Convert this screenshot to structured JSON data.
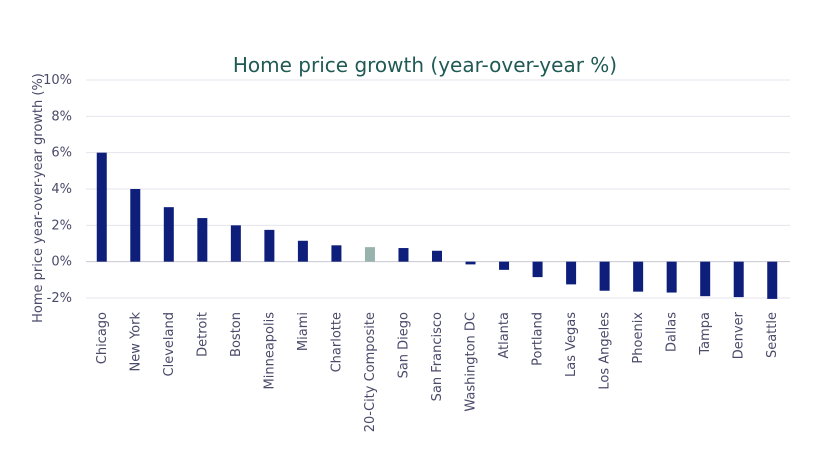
{
  "chart_data": {
    "type": "bar",
    "title": "Home price growth (year-over-year %)",
    "xlabel": "",
    "ylabel": "Home price year-over-year growth (%)",
    "ylim": [
      -2,
      10
    ],
    "yticks": [
      "-2%",
      "0%",
      "2%",
      "4%",
      "6%",
      "8%",
      "10%"
    ],
    "ytick_values": [
      -2,
      0,
      2,
      4,
      6,
      8,
      10
    ],
    "grid": true,
    "legend": "none",
    "categories": [
      "Chicago",
      "New York",
      "Cleveland",
      "Detroit",
      "Boston",
      "Minneapolis",
      "Miami",
      "Charlotte",
      "20-City Composite",
      "San Diego",
      "San Francisco",
      "Washington DC",
      "Atlanta",
      "Portland",
      "Las Vegas",
      "Los Angeles",
      "Phoenix",
      "Dallas",
      "Tampa",
      "Denver",
      "Seattle"
    ],
    "values": [
      6.0,
      4.0,
      3.0,
      2.4,
      2.0,
      1.75,
      1.15,
      0.9,
      0.8,
      0.75,
      0.6,
      -0.15,
      -0.45,
      -0.85,
      -1.25,
      -1.6,
      -1.65,
      -1.7,
      -1.9,
      -1.95,
      -2.05
    ],
    "highlight_category": "20-City Composite",
    "colors": {
      "bar": "#0d1f7a",
      "highlight": "#98b3ad",
      "title": "#1f5a54",
      "text": "#4a4a6a",
      "grid": "#e4e4ec"
    }
  }
}
